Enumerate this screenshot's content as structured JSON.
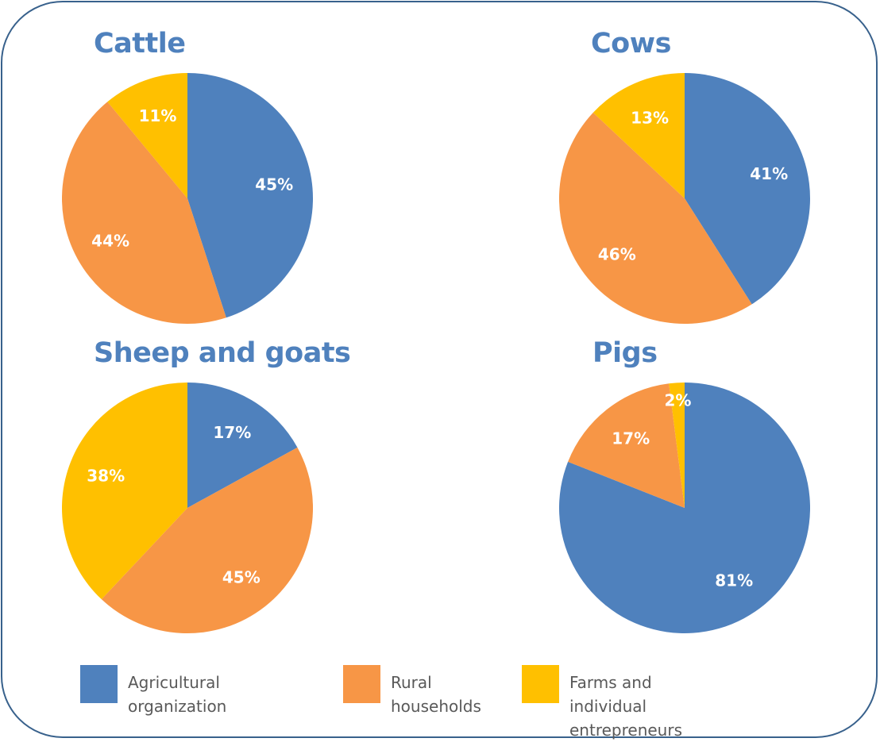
{
  "chart_data": [
    {
      "type": "pie",
      "title": "Cattle",
      "categories": [
        "Agricultural organization",
        "Rural households",
        "Farms and individual entrepreneurs"
      ],
      "values": [
        45,
        44,
        11
      ],
      "labels": [
        "45%",
        "44%",
        "11%"
      ]
    },
    {
      "type": "pie",
      "title": "Cows",
      "categories": [
        "Agricultural organization",
        "Rural households",
        "Farms and individual entrepreneurs"
      ],
      "values": [
        41,
        46,
        13
      ],
      "labels": [
        "41%",
        "46%",
        "13%"
      ]
    },
    {
      "type": "pie",
      "title": "Sheep and goats",
      "categories": [
        "Agricultural organization",
        "Rural households",
        "Farms and individual entrepreneurs"
      ],
      "values": [
        17,
        45,
        38
      ],
      "labels": [
        "17%",
        "45%",
        "38%"
      ]
    },
    {
      "type": "pie",
      "title": "Pigs",
      "categories": [
        "Agricultural organization",
        "Rural households",
        "Farms and individual entrepreneurs"
      ],
      "values": [
        81,
        17,
        2
      ],
      "labels": [
        "81%",
        "17%",
        "2%"
      ]
    }
  ],
  "legend": {
    "placement": "bottom",
    "items": [
      {
        "label": "Agricultural organization",
        "color": "#4f81bd"
      },
      {
        "label": "Rural\nhouseholds",
        "color": "#f79646"
      },
      {
        "label": "Farms and\nindividual entrepreneurs",
        "color": "#ffc000"
      }
    ]
  },
  "colors": {
    "series": [
      "#4f81bd",
      "#f79646",
      "#ffc000"
    ],
    "title": "#4f81bd",
    "border": "#38618c",
    "label": "#ffffff"
  }
}
